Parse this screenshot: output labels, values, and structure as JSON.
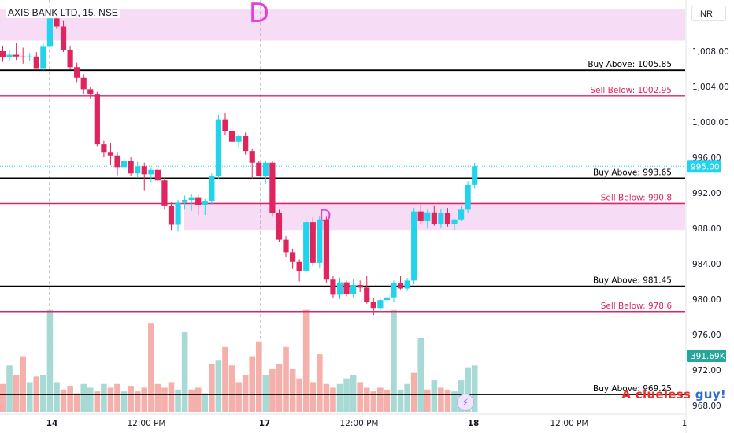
{
  "header": {
    "ticker": "AXIS BANK LTD, 15, NSE",
    "currency": "INR"
  },
  "watermark": {
    "part1": "A clueless ",
    "part2": "guy!"
  },
  "colors": {
    "up": "#22d3ee",
    "down": "#e0245e",
    "level_buy": "#000000",
    "level_sell": "#e0245e",
    "zone_fill": "#f7dcf5",
    "vol_up": "#9ed6d0",
    "vol_down": "#f4a7a3"
  },
  "chart_data": {
    "type": "candlestick",
    "title": "AXIS BANK LTD, 15, NSE",
    "xlabel": "",
    "ylabel": "INR",
    "ylim": [
      967.5,
      1012.7
    ],
    "grid": false,
    "y_ticks": [
      "968.00",
      "972.00",
      "976.00",
      "980.00",
      "984.00",
      "988.00",
      "992.00",
      "996.00",
      "1,000.00",
      "1,004.00",
      "1,008.00"
    ],
    "x_ticks": [
      "14",
      "12:00 PM",
      "17",
      "12:00 PM",
      "18",
      "12:00 PM",
      "1"
    ],
    "last_price": "995.00",
    "volume_label": "391.69K",
    "levels": [
      {
        "label": "Buy Above: 1005.85",
        "value": 1005.85,
        "kind": "buy"
      },
      {
        "label": "Sell Below: 1002.95",
        "value": 1002.95,
        "kind": "sell"
      },
      {
        "label": "Buy Above: 993.65",
        "value": 993.65,
        "kind": "buy"
      },
      {
        "label": "Sell Below: 990.8",
        "value": 990.8,
        "kind": "sell"
      },
      {
        "label": "Buy Above: 981.45",
        "value": 981.45,
        "kind": "buy"
      },
      {
        "label": "Sell Below: 978.6",
        "value": 978.6,
        "kind": "sell"
      },
      {
        "label": "Buy Above: 969.25",
        "value": 969.25,
        "kind": "buy"
      }
    ],
    "zones": [
      {
        "label": "D",
        "y_low": 1009.2,
        "y_high": 1012.7
      },
      {
        "label": "D",
        "y_low": 987.8,
        "y_high": 991.0
      }
    ],
    "candles": [
      [
        1008.0,
        1008.6,
        1006.8,
        1007.3
      ],
      [
        1007.3,
        1008.1,
        1006.9,
        1007.6
      ],
      [
        1007.6,
        1008.9,
        1007.0,
        1007.4
      ],
      [
        1007.4,
        1008.4,
        1006.6,
        1007.3
      ],
      [
        1007.3,
        1007.8,
        1006.9,
        1007.4
      ],
      [
        1007.4,
        1007.9,
        1006.0,
        1006.0
      ],
      [
        1006.0,
        1008.9,
        1005.7,
        1008.5
      ],
      [
        1008.5,
        1012.0,
        1008.2,
        1011.7
      ],
      [
        1011.7,
        1012.2,
        1010.5,
        1010.8
      ],
      [
        1010.8,
        1011.4,
        1007.9,
        1008.1
      ],
      [
        1008.1,
        1008.6,
        1005.9,
        1006.2
      ],
      [
        1006.2,
        1006.7,
        1004.5,
        1005.0
      ],
      [
        1005.0,
        1005.4,
        1003.2,
        1003.7
      ],
      [
        1003.7,
        1003.9,
        1002.6,
        1003.1
      ],
      [
        1003.1,
        1003.4,
        997.2,
        997.5
      ],
      [
        997.5,
        997.9,
        996.0,
        996.6
      ],
      [
        996.6,
        997.6,
        995.1,
        996.2
      ],
      [
        996.2,
        996.6,
        994.0,
        994.9
      ],
      [
        994.9,
        995.9,
        993.4,
        995.6
      ],
      [
        995.6,
        996.0,
        993.9,
        994.2
      ],
      [
        994.2,
        995.5,
        993.7,
        995.0
      ],
      [
        995.0,
        995.4,
        992.3,
        994.1
      ],
      [
        994.1,
        994.9,
        993.2,
        994.6
      ],
      [
        994.6,
        995.1,
        993.1,
        993.4
      ],
      [
        993.4,
        993.7,
        990.1,
        990.5
      ],
      [
        990.5,
        990.9,
        987.8,
        988.4
      ],
      [
        988.4,
        991.2,
        987.6,
        990.9
      ],
      [
        990.9,
        991.7,
        990.1,
        991.2
      ],
      [
        991.2,
        991.9,
        990.0,
        991.5
      ],
      [
        991.5,
        991.8,
        989.5,
        990.6
      ],
      [
        990.6,
        991.3,
        989.5,
        991.1
      ],
      [
        991.1,
        994.2,
        990.6,
        993.9
      ],
      [
        993.9,
        1000.8,
        993.5,
        1000.3
      ],
      [
        1000.3,
        1001.0,
        998.5,
        999.0
      ],
      [
        999.0,
        999.6,
        997.3,
        997.8
      ],
      [
        997.8,
        998.6,
        997.1,
        998.4
      ],
      [
        998.4,
        998.8,
        996.3,
        996.7
      ],
      [
        996.7,
        997.0,
        993.5,
        995.4
      ],
      [
        995.4,
        995.6,
        994.2,
        993.9
      ],
      [
        993.9,
        995.6,
        993.0,
        995.4
      ],
      [
        995.4,
        995.6,
        989.3,
        989.7
      ],
      [
        989.7,
        990.1,
        986.4,
        986.7
      ],
      [
        986.7,
        987.1,
        984.7,
        985.3
      ],
      [
        985.3,
        985.7,
        983.4,
        984.2
      ],
      [
        984.2,
        984.5,
        982.0,
        983.2
      ],
      [
        983.2,
        989.2,
        982.9,
        988.7
      ],
      [
        988.7,
        989.2,
        983.7,
        984.1
      ],
      [
        984.1,
        989.4,
        983.5,
        989.0
      ],
      [
        989.0,
        989.3,
        981.8,
        982.2
      ],
      [
        982.2,
        982.6,
        980.1,
        980.5
      ],
      [
        980.5,
        982.4,
        980.0,
        981.9
      ],
      [
        981.9,
        982.1,
        980.3,
        980.6
      ],
      [
        980.6,
        982.3,
        980.2,
        981.6
      ],
      [
        981.6,
        982.1,
        980.8,
        981.3
      ],
      [
        981.3,
        982.6,
        979.5,
        979.7
      ],
      [
        979.7,
        980.1,
        978.2,
        979.0
      ],
      [
        979.0,
        980.2,
        978.5,
        979.9
      ],
      [
        979.9,
        980.6,
        979.0,
        980.2
      ],
      [
        980.2,
        982.1,
        979.7,
        981.8
      ],
      [
        981.8,
        982.6,
        981.1,
        981.2
      ],
      [
        981.2,
        982.4,
        981.0,
        982.1
      ],
      [
        982.1,
        990.3,
        981.7,
        989.9
      ],
      [
        989.9,
        990.6,
        988.5,
        988.8
      ],
      [
        988.8,
        990.1,
        988.0,
        989.8
      ],
      [
        989.8,
        990.5,
        988.3,
        988.5
      ],
      [
        988.5,
        990.2,
        988.1,
        989.7
      ],
      [
        989.7,
        990.3,
        988.2,
        988.5
      ],
      [
        988.5,
        989.1,
        987.8,
        989.0
      ],
      [
        989.0,
        990.5,
        988.8,
        990.1
      ],
      [
        990.1,
        993.3,
        989.7,
        992.9
      ],
      [
        992.9,
        995.4,
        992.5,
        995.0
      ]
    ],
    "volumes": [
      [
        150,
        0
      ],
      [
        250,
        1
      ],
      [
        200,
        0
      ],
      [
        300,
        0
      ],
      [
        160,
        1
      ],
      [
        190,
        0
      ],
      [
        200,
        1
      ],
      [
        550,
        1
      ],
      [
        160,
        1
      ],
      [
        120,
        0
      ],
      [
        140,
        0
      ],
      [
        100,
        0
      ],
      [
        150,
        1
      ],
      [
        130,
        1
      ],
      [
        110,
        0
      ],
      [
        150,
        1
      ],
      [
        130,
        0
      ],
      [
        150,
        0
      ],
      [
        110,
        1
      ],
      [
        140,
        0
      ],
      [
        110,
        0
      ],
      [
        130,
        0
      ],
      [
        480,
        0
      ],
      [
        150,
        0
      ],
      [
        130,
        0
      ],
      [
        160,
        0
      ],
      [
        120,
        1
      ],
      [
        430,
        1
      ],
      [
        120,
        0
      ],
      [
        130,
        0
      ],
      [
        100,
        1
      ],
      [
        260,
        0
      ],
      [
        280,
        1
      ],
      [
        350,
        0
      ],
      [
        250,
        0
      ],
      [
        160,
        0
      ],
      [
        200,
        0
      ],
      [
        300,
        0
      ],
      [
        380,
        0
      ],
      [
        200,
        1
      ],
      [
        230,
        0
      ],
      [
        260,
        0
      ],
      [
        350,
        0
      ],
      [
        230,
        0
      ],
      [
        180,
        0
      ],
      [
        550,
        0
      ],
      [
        160,
        0
      ],
      [
        310,
        0
      ],
      [
        150,
        0
      ],
      [
        130,
        0
      ],
      [
        150,
        1
      ],
      [
        180,
        1
      ],
      [
        200,
        1
      ],
      [
        160,
        0
      ],
      [
        130,
        0
      ],
      [
        110,
        0
      ],
      [
        130,
        0
      ],
      [
        120,
        0
      ],
      [
        550,
        1
      ],
      [
        120,
        1
      ],
      [
        150,
        1
      ],
      [
        210,
        0
      ],
      [
        400,
        1
      ],
      [
        120,
        0
      ],
      [
        170,
        1
      ],
      [
        130,
        0
      ],
      [
        120,
        0
      ],
      [
        110,
        1
      ],
      [
        170,
        1
      ],
      [
        240,
        1
      ],
      [
        250,
        1
      ]
    ]
  }
}
